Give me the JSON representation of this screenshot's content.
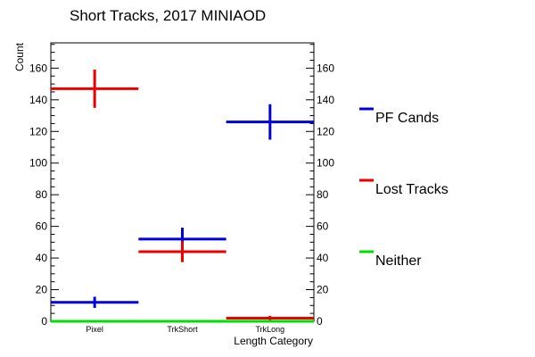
{
  "chart_data": {
    "type": "line",
    "title": "Short Tracks, 2017 MINIAOD",
    "xlabel": "Length Category",
    "ylabel": "Count",
    "categories": [
      "Pixel",
      "TrkShort",
      "TrkLong"
    ],
    "ylim": [
      0,
      176
    ],
    "yticks": [
      0,
      20,
      40,
      60,
      80,
      100,
      120,
      140,
      160
    ],
    "grid": false,
    "legend_position": "right",
    "series": [
      {
        "name": "PF Cands",
        "color": "#0000dd",
        "values": [
          12,
          52,
          126
        ],
        "errors": [
          3.5,
          7.2,
          11.2
        ]
      },
      {
        "name": "Lost Tracks",
        "color": "#ee0000",
        "values": [
          147,
          44,
          2
        ],
        "errors": [
          12.1,
          6.6,
          1.4
        ]
      },
      {
        "name": "Neither",
        "color": "#00dd00",
        "values": [
          0,
          0,
          0
        ],
        "errors": [
          0,
          0,
          0
        ]
      }
    ]
  }
}
